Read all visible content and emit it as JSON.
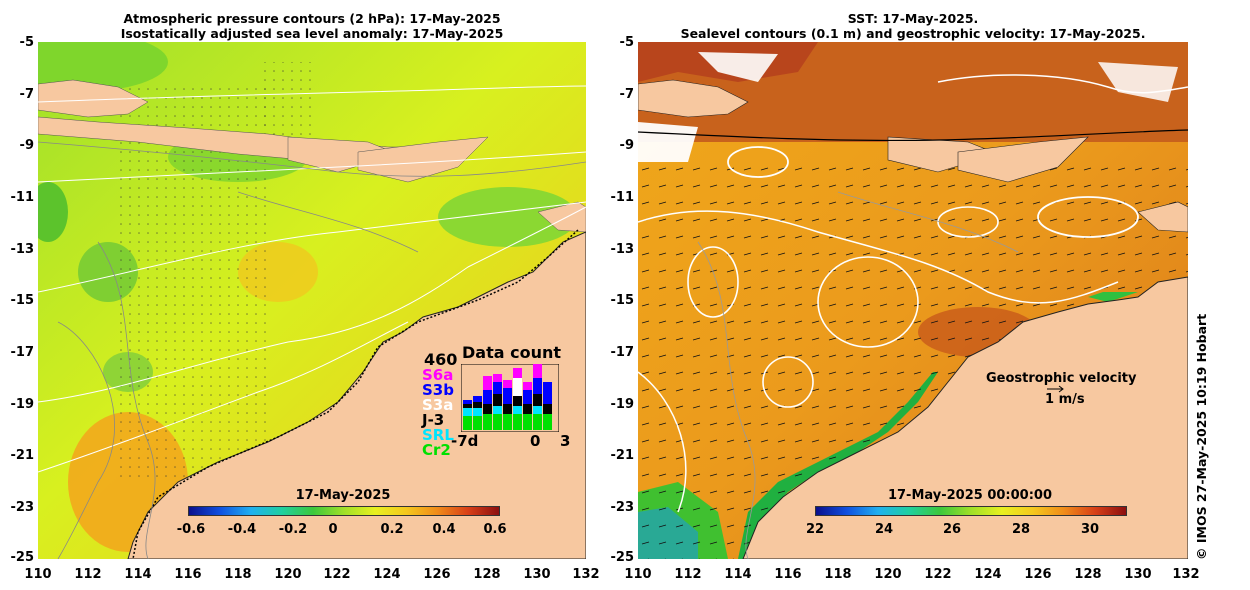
{
  "left_panel": {
    "title_line1": "Atmospheric pressure contours (2 hPa): 17-May-2025",
    "title_line2": "Isostatically adjusted sea level anomaly: 17-May-2025",
    "colorbar": {
      "title": "17-May-2025",
      "ticks": [
        "-0.6",
        "-0.4",
        "-0.2",
        "0",
        "0.2",
        "0.4",
        "0.6"
      ],
      "min": -0.6,
      "max": 0.6
    },
    "data_count": {
      "max_label": "460",
      "title": "Data count",
      "satellites": [
        {
          "name": "S6a",
          "color": "#ff00ff"
        },
        {
          "name": "S3b",
          "color": "#0000ff"
        },
        {
          "name": "S3a",
          "color": "#ffffff"
        },
        {
          "name": "J-3",
          "color": "#000000"
        },
        {
          "name": "SRL",
          "color": "#00e5ff"
        },
        {
          "name": "Cr2",
          "color": "#00e000"
        }
      ],
      "x_labels": [
        "-7d",
        "0",
        "3"
      ]
    }
  },
  "right_panel": {
    "title_line1": "SST: 17-May-2025.",
    "title_line2": "Sealevel contours (0.1 m) and geostrophic velocity: 17-May-2025.",
    "colorbar": {
      "title": "17-May-2025 00:00:00",
      "ticks": [
        "22",
        "24",
        "26",
        "28",
        "30"
      ],
      "min": 22,
      "max": 31
    },
    "velocity_legend": {
      "title": "Geostrophic velocity",
      "scale": "1 m/s"
    }
  },
  "axes": {
    "y_ticks": [
      "-5",
      "-7",
      "-9",
      "-11",
      "-13",
      "-15",
      "-17",
      "-19",
      "-21",
      "-23",
      "-25"
    ],
    "x_ticks": [
      "110",
      "112",
      "114",
      "116",
      "118",
      "120",
      "122",
      "124",
      "126",
      "128",
      "130",
      "132"
    ]
  },
  "credit": "© IMOS 27-May-2025 10:19 Hobart"
}
